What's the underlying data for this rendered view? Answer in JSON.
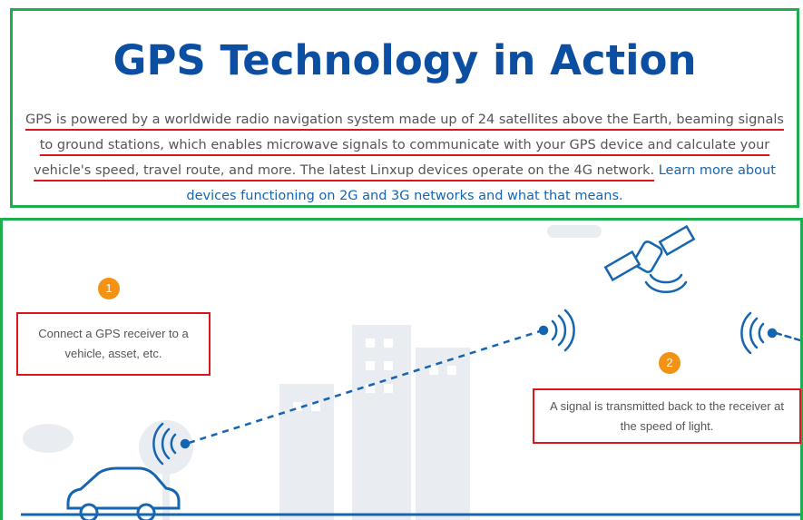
{
  "header": {
    "title": "GPS Technology in Action",
    "paragraph": "GPS is powered by a worldwide radio navigation system made up of 24 satellites above the Earth, beaming signals to ground stations, which enables microwave signals to communicate with your GPS device and calculate your vehicle's speed, travel route, and more. The latest Linxup devices operate on the 4G network.",
    "link": "Learn more about devices functioning on 2G and 3G networks and what that means."
  },
  "steps": [
    {
      "number": "1",
      "text": "Connect a GPS receiver to a vehicle, asset, etc."
    },
    {
      "number": "2",
      "text": "A signal is transmitted back to the receiver at the speed of light."
    }
  ]
}
